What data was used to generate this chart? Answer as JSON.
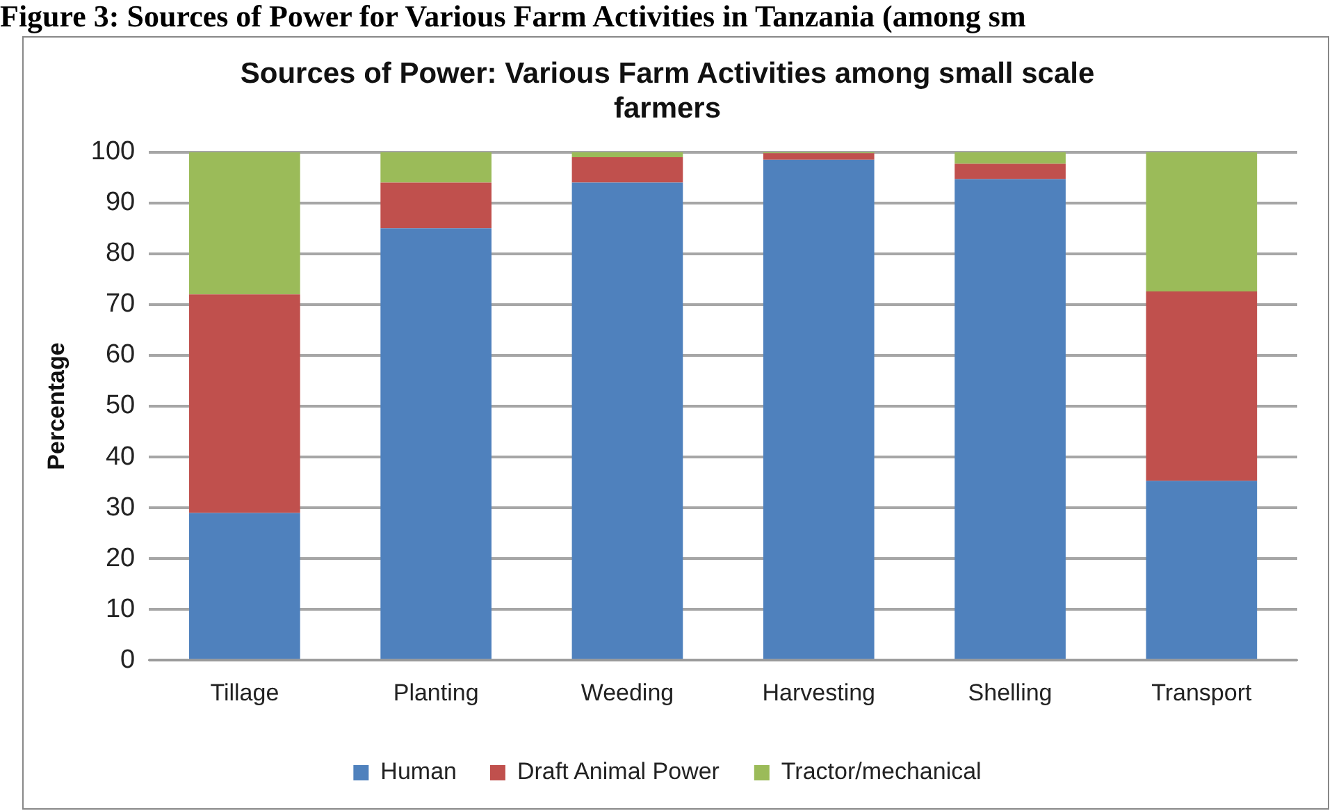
{
  "chart_data": {
    "type": "bar",
    "title": "Sources of Power: Various Farm Activities among small scale farmers",
    "annotations": [
      "Figure 3: Sources of Power for Various Farm Activities in Tanzania (among sm"
    ],
    "ylabel": "Percentage",
    "categories": [
      "Tillage",
      "Planting",
      "Weeding",
      "Harvesting",
      "Shelling",
      "Transport"
    ],
    "series": [
      {
        "name": "Human",
        "color": "#4f81bd",
        "values": [
          29,
          85,
          94,
          98.5,
          94.7,
          35.3
        ]
      },
      {
        "name": "Draft Animal Power",
        "color": "#c0504d",
        "values": [
          43,
          9,
          5,
          1.3,
          3,
          37.3
        ]
      },
      {
        "name": "Tractor/mechanical",
        "color": "#9bbb59",
        "values": [
          28,
          6,
          1,
          0.2,
          2.3,
          27.4
        ]
      }
    ],
    "stacked": true,
    "ylim": [
      0,
      100
    ],
    "yticks": [
      0,
      10,
      20,
      30,
      40,
      50,
      60,
      70,
      80,
      90,
      100
    ],
    "grid": "y",
    "legend": "bottom"
  }
}
